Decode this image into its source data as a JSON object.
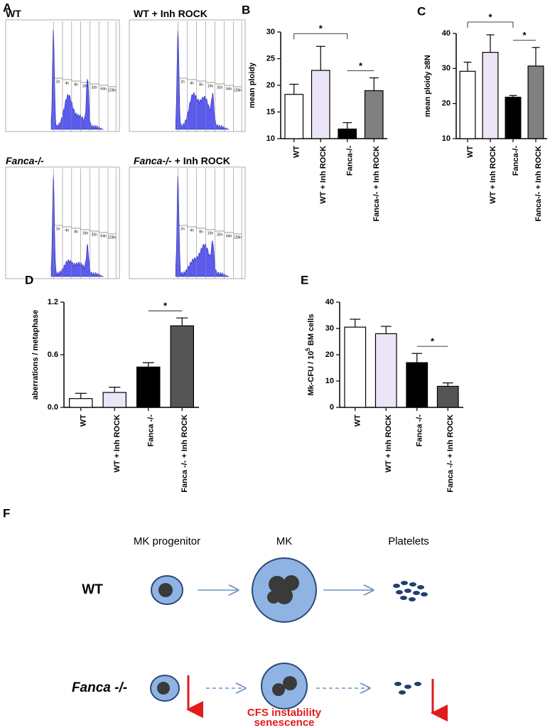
{
  "panel_a": {
    "panel": "A",
    "histograms": [
      {
        "title": "WT"
      },
      {
        "title": "WT + Inh ROCK"
      },
      {
        "title_italic": "Fanca-/-"
      },
      {
        "title_italic": "Fanca-/-",
        "title": "+ Inh ROCK"
      }
    ],
    "gate_labels": [
      "2n",
      "4n",
      "8n",
      "16n",
      "32n",
      "64n",
      "128n"
    ]
  },
  "chart_data": [
    {
      "type": "bar",
      "panel": "B",
      "y_label": "mean ploidy",
      "categories": [
        "WT",
        "WT + Inh ROCK",
        "Fanca-/-",
        "Fanca-/- + Inh ROCK"
      ],
      "values": [
        18.3,
        22.8,
        11.8,
        19
      ],
      "errors": [
        1.9,
        4.5,
        1.2,
        2.4
      ],
      "colors": [
        "#ffffff",
        "#ece4f7",
        "#000000",
        "#808080"
      ],
      "ylim": [
        10,
        30
      ],
      "yticks": [
        10,
        15,
        20,
        25,
        30
      ],
      "significance": [
        {
          "from": 0,
          "to": 2,
          "label": "*"
        },
        {
          "from": 2,
          "to": 3,
          "label": "*"
        }
      ]
    },
    {
      "type": "bar",
      "panel": "C",
      "y_label": "mean ploidy ≥8N",
      "categories": [
        "WT",
        "WT + Inh ROCK",
        "Fanca-/-",
        "Fanca-/- + Inh ROCK"
      ],
      "values": [
        29.2,
        34.6,
        21.8,
        30.7
      ],
      "errors": [
        2.6,
        5,
        0.5,
        5.3
      ],
      "colors": [
        "#ffffff",
        "#ece4f7",
        "#000000",
        "#808080"
      ],
      "ylim": [
        10,
        40
      ],
      "yticks": [
        10,
        20,
        30,
        40
      ],
      "significance": [
        {
          "from": 0,
          "to": 2,
          "label": "*"
        },
        {
          "from": 2,
          "to": 3,
          "label": "*"
        }
      ]
    },
    {
      "type": "bar",
      "panel": "D",
      "y_label": "aberrations / metaphase",
      "categories": [
        "WT",
        "WT + Inh ROCK",
        "Fanca -/-",
        "Fanca -/- + Inh ROCK"
      ],
      "values": [
        0.1,
        0.17,
        0.46,
        0.93
      ],
      "errors": [
        0.06,
        0.06,
        0.05,
        0.09
      ],
      "colors": [
        "#ffffff",
        "#ece4f7",
        "#000000",
        "#555555"
      ],
      "ylim": [
        0,
        1.2
      ],
      "yticks": [
        {
          "value": 0,
          "label": "0.0"
        },
        0.6,
        1.2
      ],
      "significance": [
        {
          "from": 2,
          "to": 3,
          "label": "*"
        }
      ]
    },
    {
      "type": "bar",
      "panel": "E",
      "y_label": "Mk-CFU / 10",
      "y_label_sup": "5",
      "y_label_end": "BM cells",
      "categories": [
        "WT",
        "WT + Inh ROCK",
        "Fanca -/-",
        "Fanca -/- + Inh ROCK"
      ],
      "values": [
        30.5,
        28,
        17,
        8
      ],
      "errors": [
        3,
        2.8,
        3.5,
        1.3
      ],
      "colors": [
        "#ffffff",
        "#ece4f7",
        "#000000",
        "#555555"
      ],
      "ylim": [
        0,
        40
      ],
      "yticks": [
        0,
        10,
        20,
        30,
        40
      ],
      "significance": [
        {
          "from": 2,
          "to": 3,
          "label": "*"
        }
      ]
    }
  ],
  "panel_f": {
    "panel": "F",
    "columns": [
      "MK progenitor",
      "MK",
      "Platelets"
    ],
    "rows": [
      "WT",
      "Fanca -/-"
    ],
    "note": [
      "CFS instability",
      "senescence"
    ]
  }
}
